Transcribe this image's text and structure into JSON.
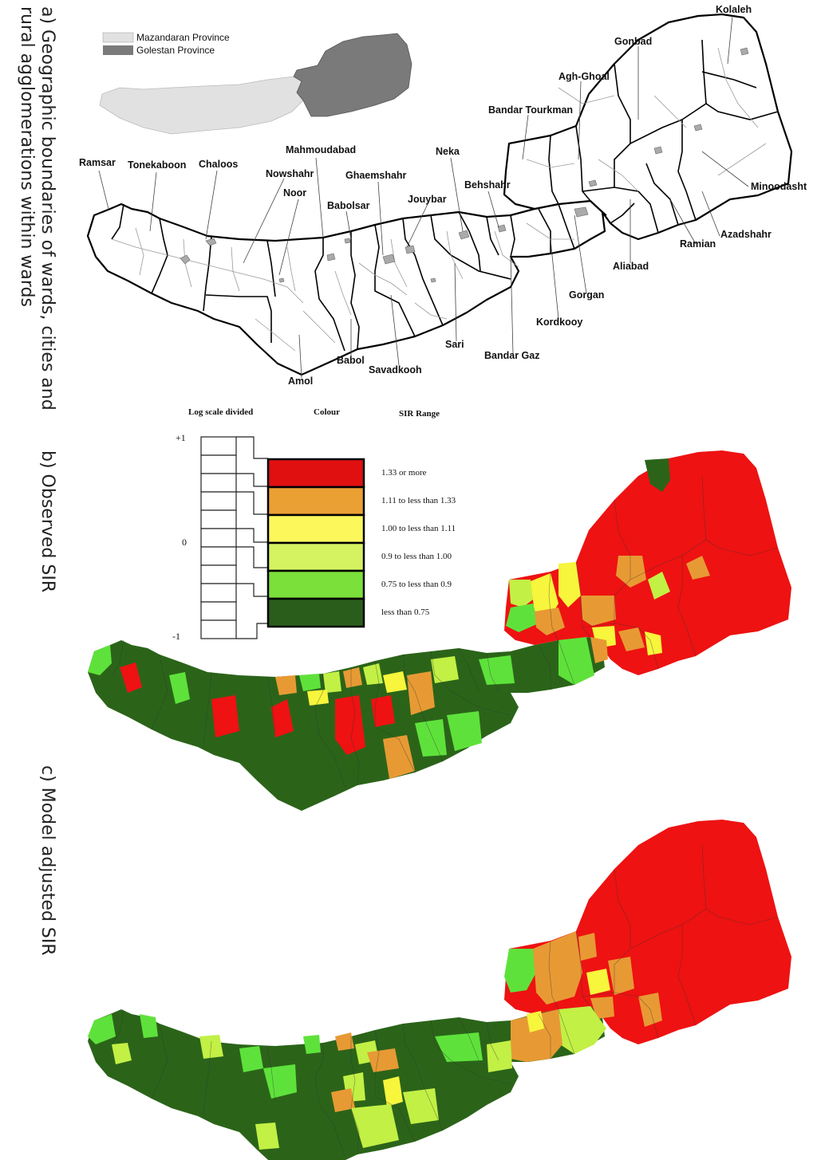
{
  "panels": {
    "a": "a) Geographic boundaries of wards, cities and",
    "a2": "rural agglomerations within wards",
    "b": "b) Observed SIR",
    "c": "c) Model adjusted SIR"
  },
  "inset": {
    "items": [
      {
        "label": "Mazandaran Province",
        "color": "#e1e1e1"
      },
      {
        "label": "Golestan Province",
        "color": "#7a7a7a"
      }
    ]
  },
  "cities": [
    "Kolaleh",
    "Gonbad",
    "Agh-Ghoal",
    "Bandar Tourkman",
    "Minoodasht",
    "Azadshahr",
    "Ramian",
    "Aliabad",
    "Gorgan",
    "Kordkooy",
    "Bandar Gaz",
    "Sari",
    "Savadkooh",
    "Babol",
    "Amol",
    "Neka",
    "Behshahr",
    "Jouybar",
    "Ghaemshahr",
    "Babolsar",
    "Mahmoudabad",
    "Noor",
    "Nowshahr",
    "Chaloos",
    "Tonekaboon",
    "Ramsar"
  ],
  "legend": {
    "headers": {
      "scale": "Log scale divided",
      "colour": "Colour",
      "range": "SIR Range"
    },
    "ticks": {
      "top": "+1",
      "mid": "0",
      "bottom": "-1"
    },
    "classes": [
      {
        "label": "1.33 or more",
        "color": "#e01010"
      },
      {
        "label": "1.11 to less than 1.33",
        "color": "#eba033"
      },
      {
        "label": "1.00 to less than 1.11",
        "color": "#fcf75b"
      },
      {
        "label": "0.9 to less than 1.00",
        "color": "#d5f261"
      },
      {
        "label": "0.75 to less than 0.9",
        "color": "#7be03a"
      },
      {
        "label": "less than 0.75",
        "color": "#2a5d1c"
      }
    ]
  },
  "colors": {
    "red": "#ee1212",
    "orange": "#e79a34",
    "yellow": "#f7f53c",
    "lime": "#c2f045",
    "light_green": "#5ee23b",
    "dark_green": "#2b6419"
  }
}
